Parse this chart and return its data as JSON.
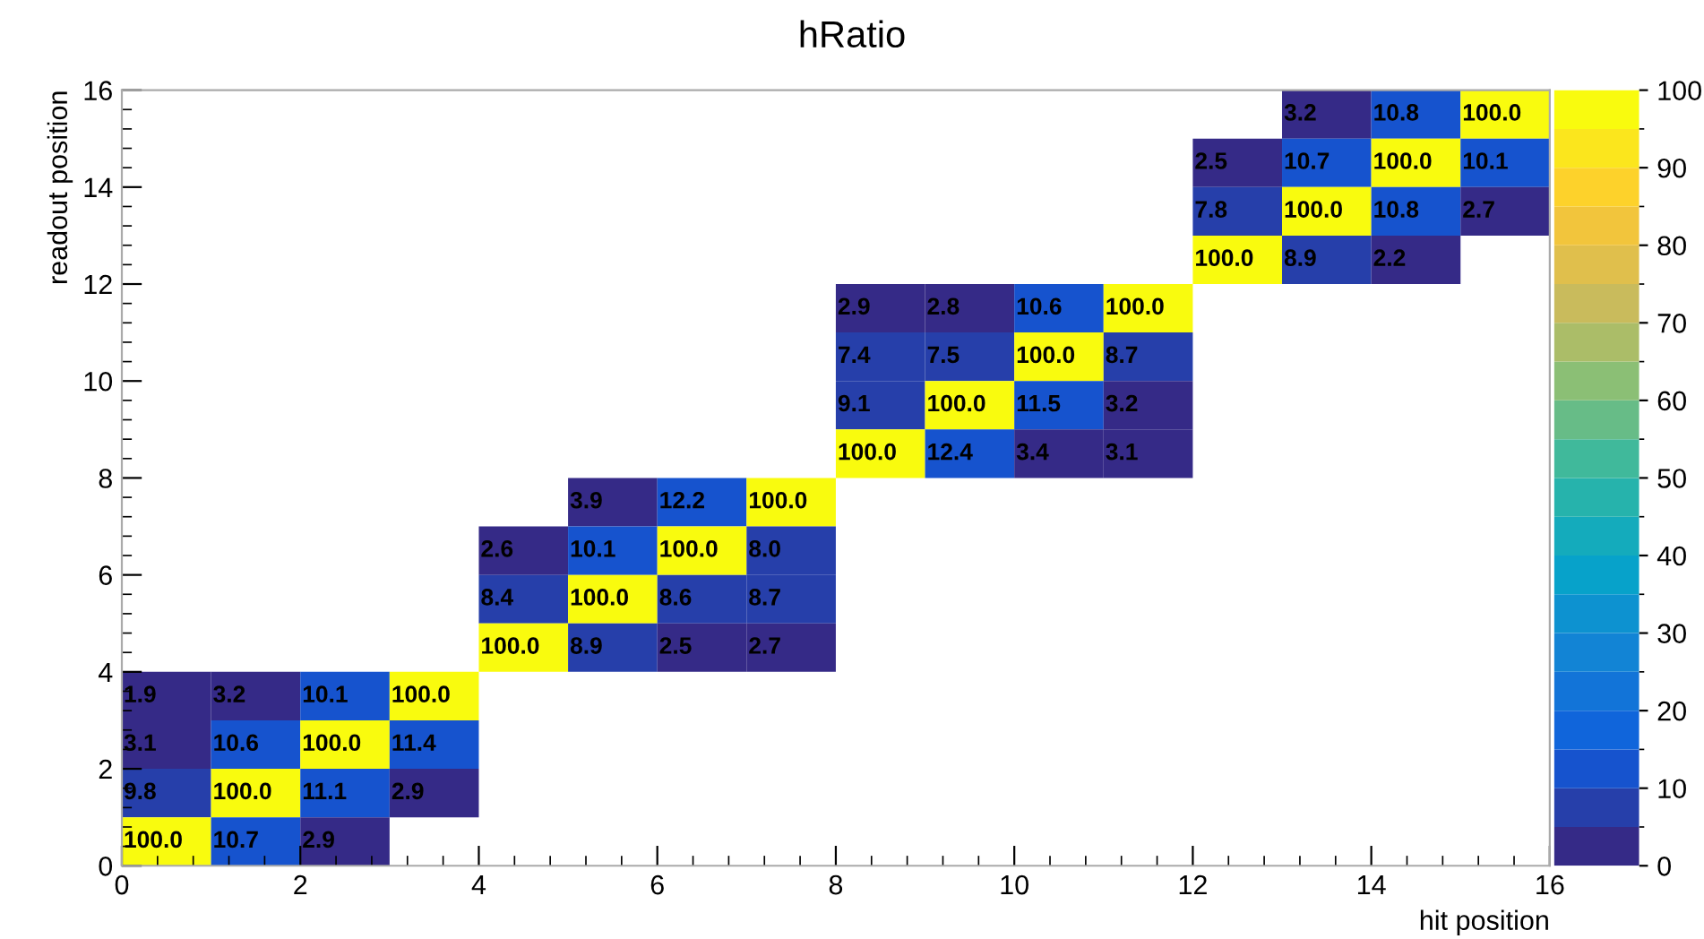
{
  "chart_data": {
    "type": "heatmap",
    "title": "hRatio",
    "xlabel": "hit position",
    "ylabel": "readout position",
    "xlim": [
      0,
      16
    ],
    "xticks": [
      0,
      2,
      4,
      6,
      8,
      10,
      12,
      14,
      16
    ],
    "ylim": [
      0,
      16
    ],
    "yticks": [
      0,
      2,
      4,
      6,
      8,
      10,
      12,
      14,
      16
    ],
    "clim": [
      0,
      100
    ],
    "cticks": [
      0,
      10,
      20,
      30,
      40,
      50,
      60,
      70,
      80,
      90,
      100
    ],
    "cells": [
      [
        null,
        null,
        null,
        null,
        null,
        null,
        null,
        null,
        null,
        null,
        null,
        null,
        null,
        3.2,
        10.8,
        100.0
      ],
      [
        null,
        null,
        null,
        null,
        null,
        null,
        null,
        null,
        null,
        null,
        null,
        null,
        2.5,
        10.7,
        100.0,
        10.1
      ],
      [
        null,
        null,
        null,
        null,
        null,
        null,
        null,
        null,
        null,
        null,
        null,
        null,
        7.8,
        100.0,
        10.8,
        2.7
      ],
      [
        null,
        null,
        null,
        null,
        null,
        null,
        null,
        null,
        null,
        null,
        null,
        null,
        100.0,
        8.9,
        2.2,
        null
      ],
      [
        null,
        null,
        null,
        null,
        null,
        null,
        null,
        null,
        2.9,
        2.8,
        10.6,
        100.0,
        null,
        null,
        null,
        null
      ],
      [
        null,
        null,
        null,
        null,
        null,
        null,
        null,
        null,
        7.4,
        7.5,
        100.0,
        8.7,
        null,
        null,
        null,
        null
      ],
      [
        null,
        null,
        null,
        null,
        null,
        null,
        null,
        null,
        9.1,
        100.0,
        11.5,
        3.2,
        null,
        null,
        null,
        null
      ],
      [
        null,
        null,
        null,
        null,
        null,
        null,
        null,
        null,
        100.0,
        12.4,
        3.4,
        3.1,
        null,
        null,
        null,
        null
      ],
      [
        null,
        null,
        null,
        null,
        null,
        3.9,
        12.2,
        100.0,
        null,
        null,
        null,
        null,
        null,
        null,
        null,
        null
      ],
      [
        null,
        null,
        null,
        null,
        2.6,
        10.1,
        100.0,
        8.0,
        null,
        null,
        null,
        null,
        null,
        null,
        null,
        null
      ],
      [
        null,
        null,
        null,
        null,
        8.4,
        100.0,
        8.6,
        8.7,
        null,
        null,
        null,
        null,
        null,
        null,
        null,
        null
      ],
      [
        null,
        null,
        null,
        null,
        100.0,
        8.9,
        2.5,
        2.7,
        null,
        null,
        null,
        null,
        null,
        null,
        null,
        null
      ],
      [
        1.9,
        3.2,
        10.1,
        100.0,
        null,
        null,
        null,
        null,
        null,
        null,
        null,
        null,
        null,
        null,
        null,
        null
      ],
      [
        3.1,
        10.6,
        100.0,
        11.4,
        null,
        null,
        null,
        null,
        null,
        null,
        null,
        null,
        null,
        null,
        null,
        null
      ],
      [
        9.8,
        100.0,
        11.1,
        2.9,
        null,
        null,
        null,
        null,
        null,
        null,
        null,
        null,
        null,
        null,
        null,
        null
      ],
      [
        100.0,
        10.7,
        2.9,
        null,
        null,
        null,
        null,
        null,
        null,
        null,
        null,
        null,
        null,
        null,
        null,
        null
      ]
    ],
    "cell_labels": [
      [
        null,
        null,
        null,
        null,
        null,
        null,
        null,
        null,
        null,
        null,
        null,
        null,
        null,
        "3.2",
        "10.8",
        "100.0"
      ],
      [
        null,
        null,
        null,
        null,
        null,
        null,
        null,
        null,
        null,
        null,
        null,
        null,
        "2.5",
        "10.7",
        "100.0",
        "10.1"
      ],
      [
        null,
        null,
        null,
        null,
        null,
        null,
        null,
        null,
        null,
        null,
        null,
        null,
        "7.8",
        "100.0",
        "10.8",
        "2.7"
      ],
      [
        null,
        null,
        null,
        null,
        null,
        null,
        null,
        null,
        null,
        null,
        null,
        null,
        "100.0",
        "8.9",
        "2.2",
        null
      ],
      [
        null,
        null,
        null,
        null,
        null,
        null,
        null,
        null,
        "2.9",
        "2.8",
        "10.6",
        "100.0",
        null,
        null,
        null,
        null
      ],
      [
        null,
        null,
        null,
        null,
        null,
        null,
        null,
        null,
        "7.4",
        "7.5",
        "100.0",
        "8.7",
        null,
        null,
        null,
        null
      ],
      [
        null,
        null,
        null,
        null,
        null,
        null,
        null,
        null,
        "9.1",
        "100.0",
        "11.5",
        "3.2",
        null,
        null,
        null,
        null
      ],
      [
        null,
        null,
        null,
        null,
        null,
        null,
        null,
        null,
        "100.0",
        "12.4",
        "3.4",
        "3.1",
        null,
        null,
        null,
        null
      ],
      [
        null,
        null,
        null,
        null,
        null,
        "3.9",
        "12.2",
        "100.0",
        null,
        null,
        null,
        null,
        null,
        null,
        null,
        null
      ],
      [
        null,
        null,
        null,
        null,
        "2.6",
        "10.1",
        "100.0",
        "8.0",
        null,
        null,
        null,
        null,
        null,
        null,
        null,
        null
      ],
      [
        null,
        null,
        null,
        null,
        "8.4",
        "100.0",
        "8.6",
        "8.7",
        null,
        null,
        null,
        null,
        null,
        null,
        null,
        null
      ],
      [
        null,
        null,
        null,
        null,
        "100.0",
        "8.9",
        "2.5",
        "2.7",
        null,
        null,
        null,
        null,
        null,
        null,
        null,
        null
      ],
      [
        "1.9",
        "3.2",
        "10.1",
        "100.0",
        null,
        null,
        null,
        null,
        null,
        null,
        null,
        null,
        null,
        null,
        null,
        null
      ],
      [
        "3.1",
        "10.6",
        "100.0",
        "11.4",
        null,
        null,
        null,
        null,
        null,
        null,
        null,
        null,
        null,
        null,
        null,
        null
      ],
      [
        "9.8",
        "100.0",
        "11.1",
        "2.9",
        null,
        null,
        null,
        null,
        null,
        null,
        null,
        null,
        null,
        null,
        null,
        null
      ],
      [
        "100.0",
        "10.7",
        "2.9",
        null,
        null,
        null,
        null,
        null,
        null,
        null,
        null,
        null,
        null,
        null,
        null,
        null
      ]
    ]
  }
}
